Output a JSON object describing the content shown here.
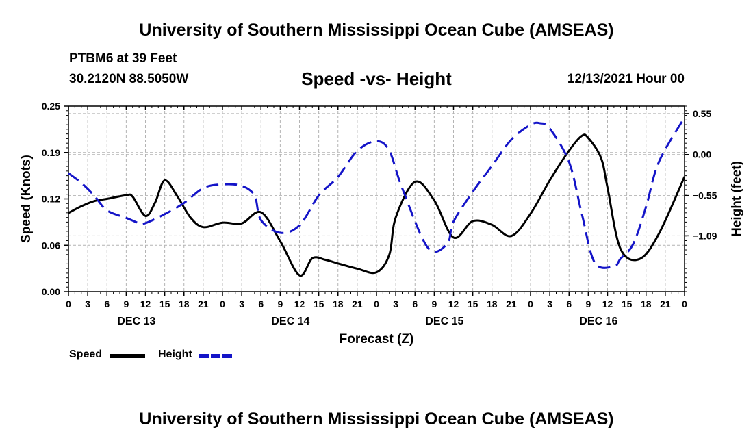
{
  "header": {
    "title": "University of Southern Mississippi Ocean Cube (AMSEAS)",
    "station": "PTBM6 at 39 Feet",
    "coords": "30.2120N  88.5050W",
    "subtitle": "Speed -vs- Height",
    "datetime": "12/13/2021 Hour 00"
  },
  "footer": {
    "title": "University of Southern Mississippi Ocean Cube (AMSEAS)"
  },
  "legend": {
    "speed_label": "Speed",
    "height_label": "Height"
  },
  "colors": {
    "speed": "#000000",
    "height": "#1414c8",
    "grid": "#b4b4b4"
  },
  "chart_data": {
    "type": "line",
    "xlabel": "Forecast (Z)",
    "ylabel_left": "Speed (Knots)",
    "ylabel_right": "Height (feet)",
    "x_range_hours": [
      0,
      96
    ],
    "x_tick_labels": [
      "0",
      "3",
      "6",
      "9",
      "12",
      "15",
      "18",
      "21",
      "0",
      "3",
      "6",
      "9",
      "12",
      "15",
      "18",
      "21",
      "0",
      "3",
      "6",
      "9",
      "12",
      "15",
      "18",
      "21",
      "0",
      "3",
      "6",
      "9",
      "12",
      "15",
      "18",
      "21",
      "0"
    ],
    "day_labels": [
      {
        "label": "DEC 13",
        "hour": 9
      },
      {
        "label": "DEC 14",
        "hour": 33
      },
      {
        "label": "DEC 15",
        "hour": 57
      },
      {
        "label": "DEC 16",
        "hour": 81
      }
    ],
    "left_axis": {
      "ylim": [
        0,
        0.25
      ],
      "ticks": [
        "0.00",
        "0.06",
        "0.12",
        "0.19",
        "0.25"
      ],
      "tick_values": [
        0,
        0.0625,
        0.125,
        0.1875,
        0.25
      ]
    },
    "right_axis": {
      "ylim": [
        -1.84,
        0.65
      ],
      "ticks": [
        "0.55",
        "0.00",
        "−0.55",
        "−1.09"
      ],
      "tick_values": [
        0.55,
        0,
        -0.55,
        -1.09
      ]
    },
    "series": [
      {
        "name": "Speed",
        "axis": "left",
        "style": "solid",
        "x": [
          0,
          2,
          4,
          6,
          9,
          10,
          12,
          13.5,
          15,
          17,
          19,
          21,
          24,
          27,
          30,
          33,
          36,
          38,
          40,
          42,
          45,
          48,
          50,
          51,
          54,
          57,
          60,
          63,
          66,
          69,
          72,
          75,
          78,
          80,
          81,
          83,
          84,
          86,
          89,
          92,
          96
        ],
        "y": [
          0.106,
          0.115,
          0.122,
          0.125,
          0.13,
          0.128,
          0.102,
          0.12,
          0.15,
          0.128,
          0.1,
          0.087,
          0.093,
          0.092,
          0.107,
          0.068,
          0.022,
          0.045,
          0.043,
          0.038,
          0.031,
          0.026,
          0.05,
          0.1,
          0.148,
          0.123,
          0.073,
          0.095,
          0.09,
          0.075,
          0.105,
          0.15,
          0.19,
          0.21,
          0.207,
          0.18,
          0.14,
          0.058,
          0.044,
          0.078,
          0.155
        ]
      },
      {
        "name": "Height",
        "axis": "right",
        "style": "dashed",
        "x": [
          0,
          2,
          4,
          6,
          9,
          11,
          12,
          15,
          18,
          21,
          24,
          27,
          29,
          30,
          33,
          36,
          39,
          42,
          45,
          48,
          50,
          52,
          56,
          59,
          60,
          63,
          66,
          69,
          72,
          73.5,
          75,
          78,
          80,
          82,
          85,
          86,
          88,
          90,
          92,
          96
        ],
        "y": [
          -0.25,
          -0.38,
          -0.55,
          -0.75,
          -0.85,
          -0.92,
          -0.92,
          -0.8,
          -0.65,
          -0.45,
          -0.4,
          -0.42,
          -0.55,
          -0.88,
          -1.05,
          -0.95,
          -0.55,
          -0.3,
          0.05,
          0.18,
          0.05,
          -0.45,
          -1.25,
          -1.2,
          -0.9,
          -0.5,
          -0.15,
          0.2,
          0.4,
          0.42,
          0.35,
          -0.1,
          -0.8,
          -1.45,
          -1.5,
          -1.4,
          -1.2,
          -0.7,
          -0.1,
          0.5
        ]
      }
    ]
  }
}
